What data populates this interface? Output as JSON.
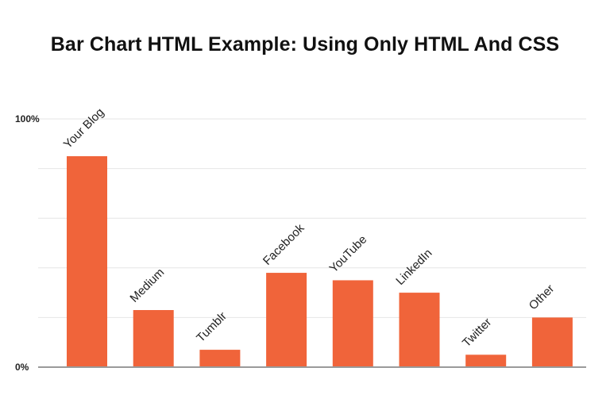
{
  "chart_data": {
    "type": "bar",
    "title": "Bar Chart HTML Example: Using Only HTML And CSS",
    "xlabel": "",
    "ylabel": "",
    "ylim": [
      0,
      100
    ],
    "y_ticks": [
      {
        "value": 0,
        "label": "0%"
      },
      {
        "value": 100,
        "label": "100%"
      }
    ],
    "gridlines": [
      0,
      20,
      40,
      60,
      80,
      100
    ],
    "categories": [
      "Your Blog",
      "Medium",
      "Tumblr",
      "Facebook",
      "YouTube",
      "LinkedIn",
      "Twitter",
      "Other"
    ],
    "values": [
      85,
      23,
      7,
      38,
      35,
      30,
      5,
      20
    ],
    "bar_color": "#f0643a",
    "grid": true,
    "legend": "none"
  }
}
